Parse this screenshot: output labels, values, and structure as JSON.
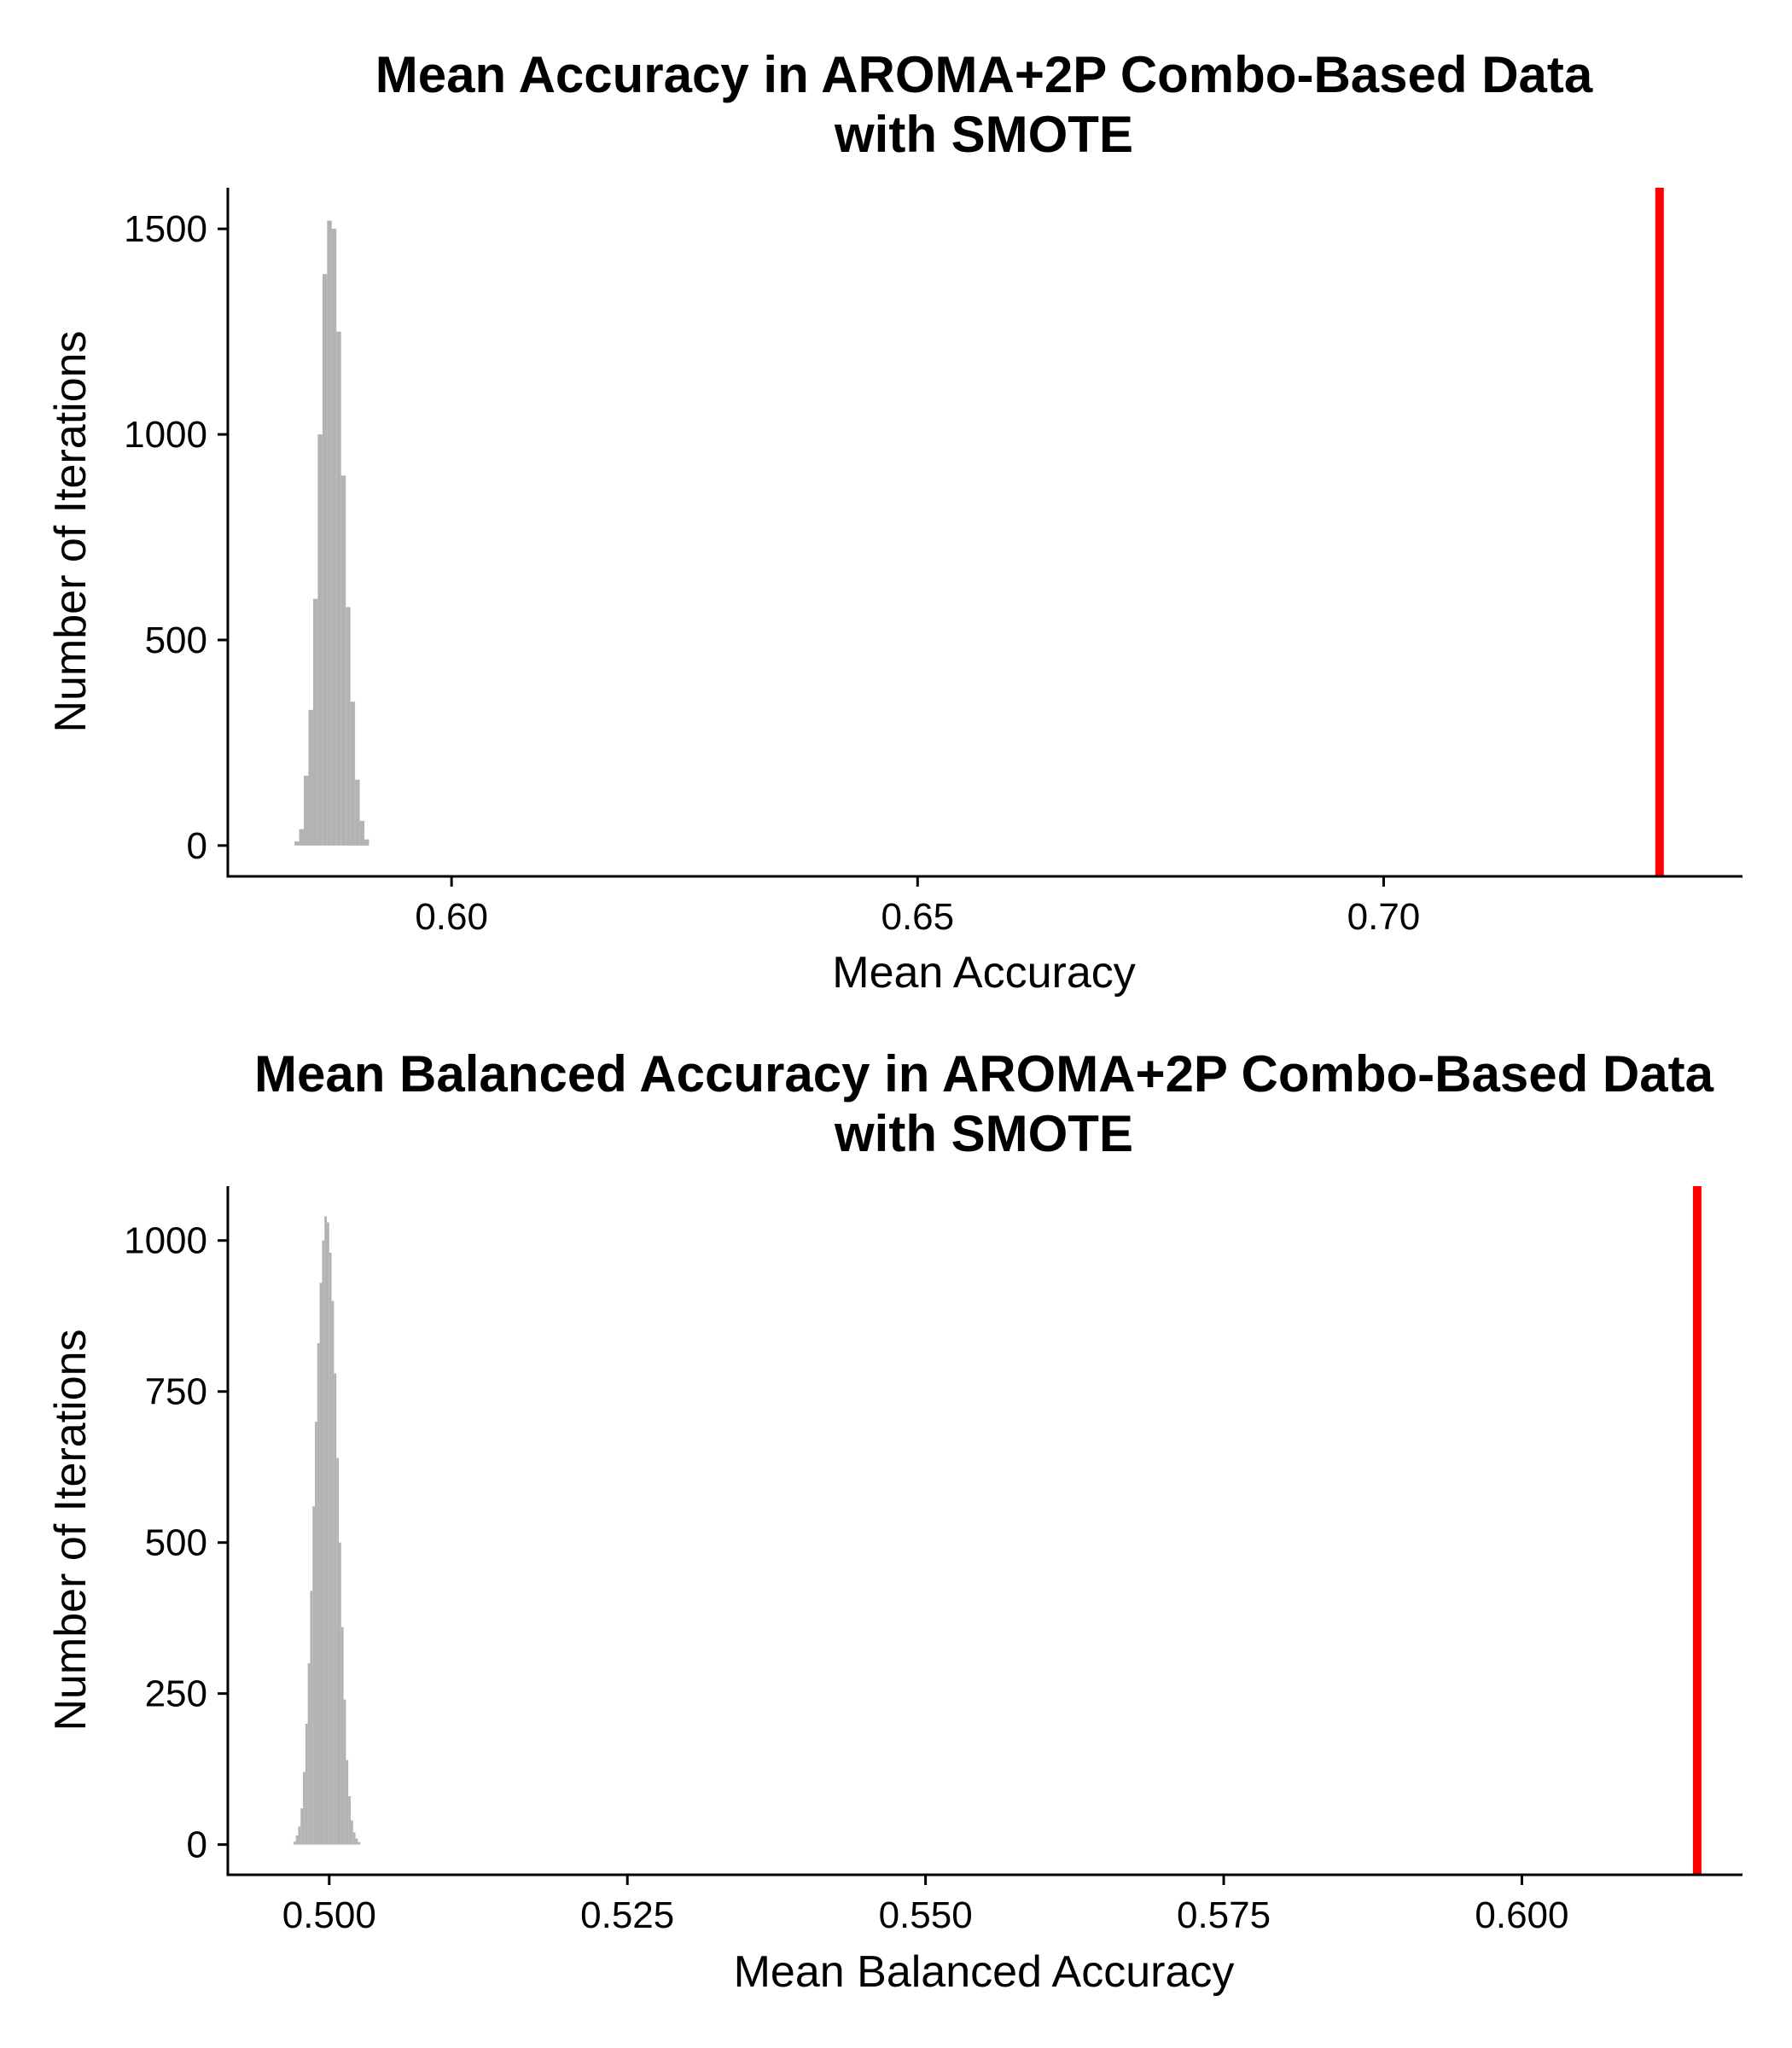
{
  "chart_data": [
    {
      "type": "bar",
      "title": "Mean Accuracy in AROMA+2P Combo-Based Data",
      "subtitle": "with SMOTE",
      "xlabel": "Mean Accuracy",
      "ylabel": "Number of Iterations",
      "xlim": [
        0.576,
        0.7385
      ],
      "ylim": [
        -75,
        1600
      ],
      "xticks": [
        0.6,
        0.65,
        0.7
      ],
      "xtick_labels": [
        "0.60",
        "0.65",
        "0.70"
      ],
      "yticks": [
        0,
        500,
        1000,
        1500
      ],
      "ytick_labels": [
        "0",
        "500",
        "1000",
        "1500"
      ],
      "grid": false,
      "bar_color": "#b3b3b3",
      "reference_line": {
        "x": 0.7296,
        "color": "#ff0000"
      },
      "bin_width": 0.0005,
      "bins": [
        {
          "x": 0.5834,
          "count": 10
        },
        {
          "x": 0.5839,
          "count": 40
        },
        {
          "x": 0.5844,
          "count": 170
        },
        {
          "x": 0.5849,
          "count": 330
        },
        {
          "x": 0.5854,
          "count": 600
        },
        {
          "x": 0.5859,
          "count": 1000
        },
        {
          "x": 0.5864,
          "count": 1390
        },
        {
          "x": 0.5869,
          "count": 1520
        },
        {
          "x": 0.5874,
          "count": 1500
        },
        {
          "x": 0.5879,
          "count": 1250
        },
        {
          "x": 0.5884,
          "count": 900
        },
        {
          "x": 0.5889,
          "count": 580
        },
        {
          "x": 0.5894,
          "count": 350
        },
        {
          "x": 0.5899,
          "count": 160
        },
        {
          "x": 0.5904,
          "count": 60
        },
        {
          "x": 0.5909,
          "count": 15
        }
      ]
    },
    {
      "type": "bar",
      "title": "Mean Balanced Accuracy in AROMA+2P Combo-Based Data",
      "subtitle": "with SMOTE",
      "xlabel": "Mean Balanced Accuracy",
      "ylabel": "Number of Iterations",
      "xlim": [
        0.4915,
        0.6185
      ],
      "ylim": [
        -50,
        1090
      ],
      "xticks": [
        0.5,
        0.525,
        0.55,
        0.575,
        0.6
      ],
      "xtick_labels": [
        "0.500",
        "0.525",
        "0.550",
        "0.575",
        "0.600"
      ],
      "yticks": [
        0,
        250,
        500,
        750,
        1000
      ],
      "ytick_labels": [
        "0",
        "250",
        "500",
        "750",
        "1000"
      ],
      "grid": false,
      "bar_color": "#b3b3b3",
      "reference_line": {
        "x": 0.6147,
        "color": "#ff0000"
      },
      "bin_width": 0.0002,
      "bins": [
        {
          "x": 0.4971,
          "count": 5
        },
        {
          "x": 0.4973,
          "count": 15
        },
        {
          "x": 0.4975,
          "count": 30
        },
        {
          "x": 0.4977,
          "count": 60
        },
        {
          "x": 0.4979,
          "count": 120
        },
        {
          "x": 0.4981,
          "count": 200
        },
        {
          "x": 0.4983,
          "count": 300
        },
        {
          "x": 0.4985,
          "count": 420
        },
        {
          "x": 0.4987,
          "count": 560
        },
        {
          "x": 0.4989,
          "count": 700
        },
        {
          "x": 0.4991,
          "count": 830
        },
        {
          "x": 0.4993,
          "count": 930
        },
        {
          "x": 0.4995,
          "count": 1000
        },
        {
          "x": 0.4997,
          "count": 1040
        },
        {
          "x": 0.4999,
          "count": 1030
        },
        {
          "x": 0.5001,
          "count": 980
        },
        {
          "x": 0.5003,
          "count": 900
        },
        {
          "x": 0.5005,
          "count": 780
        },
        {
          "x": 0.5007,
          "count": 640
        },
        {
          "x": 0.5009,
          "count": 500
        },
        {
          "x": 0.5011,
          "count": 360
        },
        {
          "x": 0.5013,
          "count": 240
        },
        {
          "x": 0.5015,
          "count": 140
        },
        {
          "x": 0.5017,
          "count": 80
        },
        {
          "x": 0.5019,
          "count": 40
        },
        {
          "x": 0.5021,
          "count": 20
        },
        {
          "x": 0.5023,
          "count": 10
        },
        {
          "x": 0.5025,
          "count": 4
        }
      ]
    }
  ]
}
